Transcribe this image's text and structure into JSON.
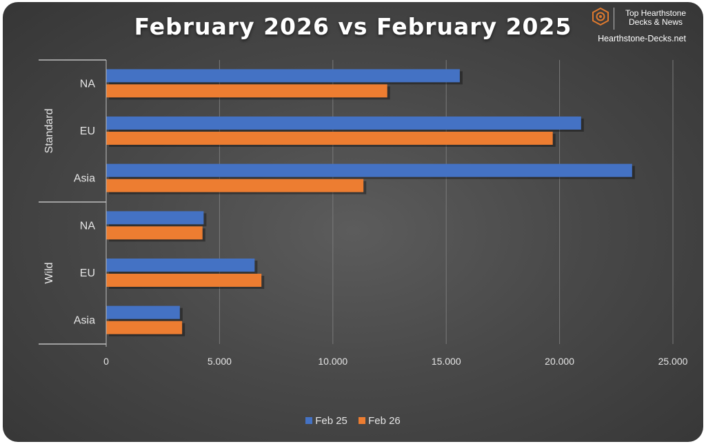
{
  "chart_data": {
    "type": "bar",
    "orientation": "horizontal",
    "title": "February 2026 vs February 2025",
    "groups": [
      {
        "name": "Standard",
        "categories": [
          "NA",
          "EU",
          "Asia"
        ]
      },
      {
        "name": "Wild",
        "categories": [
          "NA",
          "EU",
          "Asia"
        ]
      }
    ],
    "categories": [
      "NA",
      "EU",
      "Asia",
      "NA",
      "EU",
      "Asia"
    ],
    "series": [
      {
        "name": "Feb 25",
        "color": "#4472c4",
        "values": [
          15600,
          20950,
          23200,
          4300,
          6550,
          3250
        ]
      },
      {
        "name": "Feb 26",
        "color": "#ed7d31",
        "values": [
          12400,
          19700,
          11350,
          4250,
          6850,
          3350
        ]
      }
    ],
    "xlim": [
      0,
      25000
    ],
    "ticks": [
      0,
      5000,
      10000,
      15000,
      20000,
      25000
    ],
    "tick_labels": [
      "0",
      "5.000",
      "10.000",
      "15.000",
      "20.000",
      "25.000"
    ],
    "grid": true,
    "legend": "bottom"
  },
  "brand": {
    "line1": "Top Hearthstone",
    "line2": "Decks & News",
    "url": "Hearthstone-Decks.net"
  },
  "colors": {
    "background": "#474747",
    "text": "#e6e6e6",
    "gridline": "#7a7a7a",
    "brand_accent": "#e07a2e"
  }
}
